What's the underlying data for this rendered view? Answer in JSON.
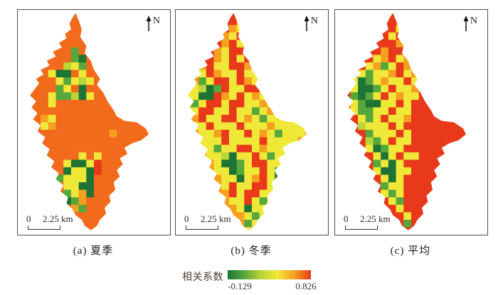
{
  "figure": {
    "legend": {
      "title": "相关系数",
      "min": "-0.129",
      "max": "0.826",
      "gradient": [
        "#1E7434",
        "#56A83C",
        "#BBD437",
        "#F0E838",
        "#F6A01F",
        "#E8391B"
      ]
    },
    "palette": {
      "O": "#F26A1B",
      "A": "#F6A01F",
      "Y": "#F0E838",
      "L": "#BBD437",
      "G": "#56A83C",
      "D": "#1E7434",
      "R": "#E8391B"
    },
    "outline": [
      [
        76,
        4
      ],
      [
        80,
        14
      ],
      [
        84,
        26
      ],
      [
        82,
        36
      ],
      [
        90,
        48
      ],
      [
        88,
        58
      ],
      [
        96,
        68
      ],
      [
        100,
        80
      ],
      [
        108,
        92
      ],
      [
        104,
        100
      ],
      [
        112,
        110
      ],
      [
        118,
        122
      ],
      [
        126,
        134
      ],
      [
        130,
        142
      ],
      [
        140,
        148
      ],
      [
        156,
        150
      ],
      [
        168,
        158
      ],
      [
        172,
        166
      ],
      [
        162,
        174
      ],
      [
        150,
        178
      ],
      [
        140,
        184
      ],
      [
        144,
        192
      ],
      [
        134,
        198
      ],
      [
        138,
        206
      ],
      [
        130,
        214
      ],
      [
        134,
        222
      ],
      [
        126,
        230
      ],
      [
        128,
        240
      ],
      [
        120,
        248
      ],
      [
        122,
        256
      ],
      [
        114,
        264
      ],
      [
        116,
        272
      ],
      [
        108,
        280
      ],
      [
        104,
        288
      ],
      [
        96,
        294
      ],
      [
        88,
        288
      ],
      [
        84,
        280
      ],
      [
        76,
        274
      ],
      [
        72,
        266
      ],
      [
        64,
        258
      ],
      [
        66,
        250
      ],
      [
        56,
        242
      ],
      [
        60,
        234
      ],
      [
        50,
        226
      ],
      [
        54,
        218
      ],
      [
        44,
        210
      ],
      [
        48,
        202
      ],
      [
        38,
        194
      ],
      [
        42,
        186
      ],
      [
        32,
        178
      ],
      [
        36,
        170
      ],
      [
        26,
        162
      ],
      [
        30,
        154
      ],
      [
        20,
        146
      ],
      [
        26,
        138
      ],
      [
        18,
        130
      ],
      [
        24,
        122
      ],
      [
        16,
        114
      ],
      [
        22,
        106
      ],
      [
        28,
        98
      ],
      [
        24,
        92
      ],
      [
        34,
        86
      ],
      [
        30,
        80
      ],
      [
        42,
        74
      ],
      [
        38,
        68
      ],
      [
        50,
        62
      ],
      [
        46,
        56
      ],
      [
        58,
        50
      ],
      [
        54,
        44
      ],
      [
        64,
        38
      ],
      [
        62,
        32
      ],
      [
        70,
        26
      ],
      [
        68,
        18
      ],
      [
        72,
        10
      ]
    ],
    "panels": [
      {
        "caption": "(a) 夏季",
        "north_label": "N",
        "scale_zero": "0",
        "scale_distance": "2.25 km",
        "grid": [
          "OOOOOOOOOOOOOOOOOOOO",
          "OOOOOOOOOOOOOOOOOOOO",
          "OOOOOOOOOOOOOOOOOOOO",
          "OOOOOOOOOOOOOOOOOOOO",
          "OOOOOOOOOOOOOOOOOOOO",
          "OOOOOOOGOOOOOOOOOOOO",
          "OOOOOOOGDOOOOOOOOOOO",
          "OOOOOOLYGOOOOOOOOOOO",
          "OOOOYDDOYOOOOOOOOOOO",
          "OOOOOYGYLYOOOOOOOOOO",
          "OOOOOGYODOOOOOOOOOOO",
          "OOOOYGGLDYOOOOOOOOOO",
          "OOOOYOOOOOOOOOOOOOOO",
          "OOOOOOOOOOOOOOOOOOOO",
          "OOOAYOOOOOOOOOOOOOOO",
          "OOOYAOOOOOOOOOOOOOOO",
          "OOOOOOOOOOOOAOOOOOOO",
          "OOOOOOOOOOOOOOOOOOOO",
          "OOOOOOOOOOOOOOOOOOOO",
          "OOOOOOOOYOYOOOOOOOOO",
          "OOOOOOYDDYROOOOOOOOO",
          "OOOOOODYYDROOOOOOOOO",
          "OOOOOGYYYDOOOOOOOOOO",
          "OOOOOOYYDDOOOOOOOOOO",
          "OOOOOOGYADOOOOOOOOOO",
          "OOOOOODGAOOOOOOOOOOO",
          "OOOOOOOAGOOOOOOOOOOO",
          "OOOOOOOOOOOOOOOOOOOO",
          "OOOOOOOOOOOOOOOOOOOO",
          "OOOOOOOOOOOOOOOOOOOO"
        ]
      },
      {
        "caption": "(b) 冬季",
        "north_label": "N",
        "scale_zero": "0",
        "scale_distance": "2.25 km",
        "grid": [
          "RRRRRRRRRGLRRRRRRRRR",
          "RRRRRRRRAYLRRRRRRRRR",
          "RRRRRRRAYRYRRRRRRRRR",
          "RRRRRRAYRRYARRRRRRRR",
          "RRRRRRARYRAYRRRRRRRR",
          "RRRRRAYRRYYARRRRRRRR",
          "RRRRRAYRYRYLRRRRRRRR",
          "RRRARYYRRAGYRRRRRRRR",
          "AAAYRAYYRYYGYARRRRRR",
          "AAAGYRRYRAYYYAARRRRR",
          "AAYLDGRYYRRYYAAAARRR",
          "AYYDDRAYRYAYRYAAAARR",
          "AAGYRRYRRYYAYYYAAAAR",
          "AYYRRYYRYYGYAYYAAAAA",
          "AAARYYRRYAYGYYYYAAAA",
          "AYYYRYYYRYYYAYYYYAAA",
          "AAAYYARYYRYAYGYYYAAA",
          "AAAYYYRYYYYRYYYYAAAA",
          "AAAYYGYYRRYAYYYYAAAA",
          "AAAAYYLDYYRYGYYYAAAA",
          "AAAAAYDDGYRRYYYAAAAA",
          "AAAAAYYDGYYRYGYAAAAA",
          "AAAAAAYYDYARYDYAAAAA",
          "AAAAAAYRYYRRYYAAAAAA",
          "AAAAAAARYRRYYAAAAAAA",
          "AAAAAAAYYRYGYAAAAAAA",
          "AAAAAAAAYDYYAAAAAAAA",
          "AAAAAAAAAYGYAAAAAAAA",
          "AAAAAAAAAGYAAAAAAAAA",
          "AAAAAAAAAYAAAAAAAAAA"
        ]
      },
      {
        "caption": "(c) 平均",
        "north_label": "N",
        "scale_zero": "0",
        "scale_distance": "2.25 km",
        "grid": [
          "RRRRRRRRRDGRRRRRRRRR",
          "RRRRRRRRRYGRRRRRRRRR",
          "RRRRRRRRYRRRRRRRRRRR",
          "RRRRRRRYRRRRRRRRRRRR",
          "RRRRRRRRARRRRRRRRRRR",
          "RRRRRRARRRARRRRRRRRR",
          "RRRRRYARYARRRRRRRRRR",
          "RRRRYAGYRAYRRRRRRRRR",
          "RRRYGYYARYARRRRRRRRR",
          "RRYDGYAYYRYRRRRRRRRR",
          "RRYDDGYRYYARRRRRRRRR",
          "RRGDGYRYAYYRRRRRRRRR",
          "RRYGDDYYRYRRRRRRRRRR",
          "RRYGGYYRYYRRRRRRRRRR",
          "RRRYGYRYYARRRRRRRRRR",
          "RRRLYYYRYRRRRRRRRRRR",
          "RRRRGYYYRYRRRRRRRRRR",
          "RRRRLGYRYYRRRRRRRRRR",
          "RRRRYDGYYRRRRRRRRRRR",
          "RRRRRYDYRYYRRRRRRRRR",
          "RRRRRGYDYRRRRRRRRRRR",
          "RRRRRYDDYYRRRRRRRRRR",
          "RRRRRRYDYRRRRRRRRRRR",
          "RRRRRRGYYRRRRRRRRRRR",
          "RRRRRRYGYRRRRRRRRRRR",
          "RRRRRRRYGRRRRRRRRRRR",
          "RRRRRRRRYRRRRGRRRRRR",
          "RRRRRRRRRYRRGGRRRRRR",
          "RRRRRRRRRGRRRRRRRRRR",
          "RRRRRRRRRRRRRRRRRRRR"
        ]
      }
    ]
  }
}
